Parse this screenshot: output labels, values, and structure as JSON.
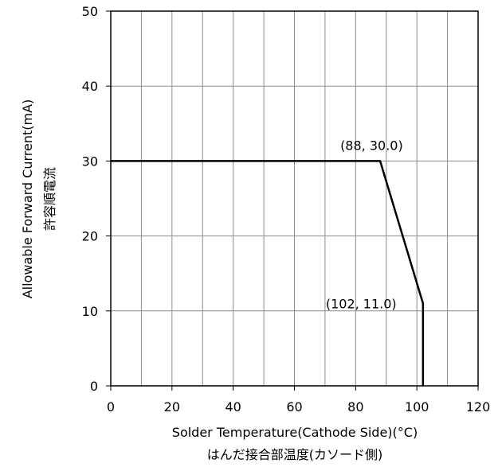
{
  "chart_data": {
    "type": "line",
    "title": "",
    "xlabel": "Solder Temperature(Cathode Side)(°C)",
    "xlabel_jp": "はんだ接合部温度(カソード側)",
    "ylabel": "Allowable Forward Current(mA)",
    "ylabel_jp": "許容順電流",
    "xlim": [
      0,
      120
    ],
    "ylim": [
      0,
      50
    ],
    "x_ticks": [
      0,
      20,
      40,
      60,
      80,
      100,
      120
    ],
    "y_ticks": [
      0,
      10,
      20,
      30,
      40,
      50
    ],
    "x_tick_labels": [
      "0",
      "20",
      "40",
      "60",
      "80",
      "100",
      "120"
    ],
    "y_tick_labels": [
      "0",
      "10",
      "20",
      "30",
      "40",
      "50"
    ],
    "x_grid_step": 10,
    "y_grid_step": 10,
    "grid": true,
    "series": [
      {
        "x": [
          0,
          88,
          102,
          102
        ],
        "y": [
          30,
          30,
          11,
          0
        ]
      }
    ],
    "annotations": [
      {
        "text": "(88, 30.0)",
        "x": 88,
        "y": 30
      },
      {
        "text": "(102, 11.0)",
        "x": 102,
        "y": 11
      }
    ]
  }
}
